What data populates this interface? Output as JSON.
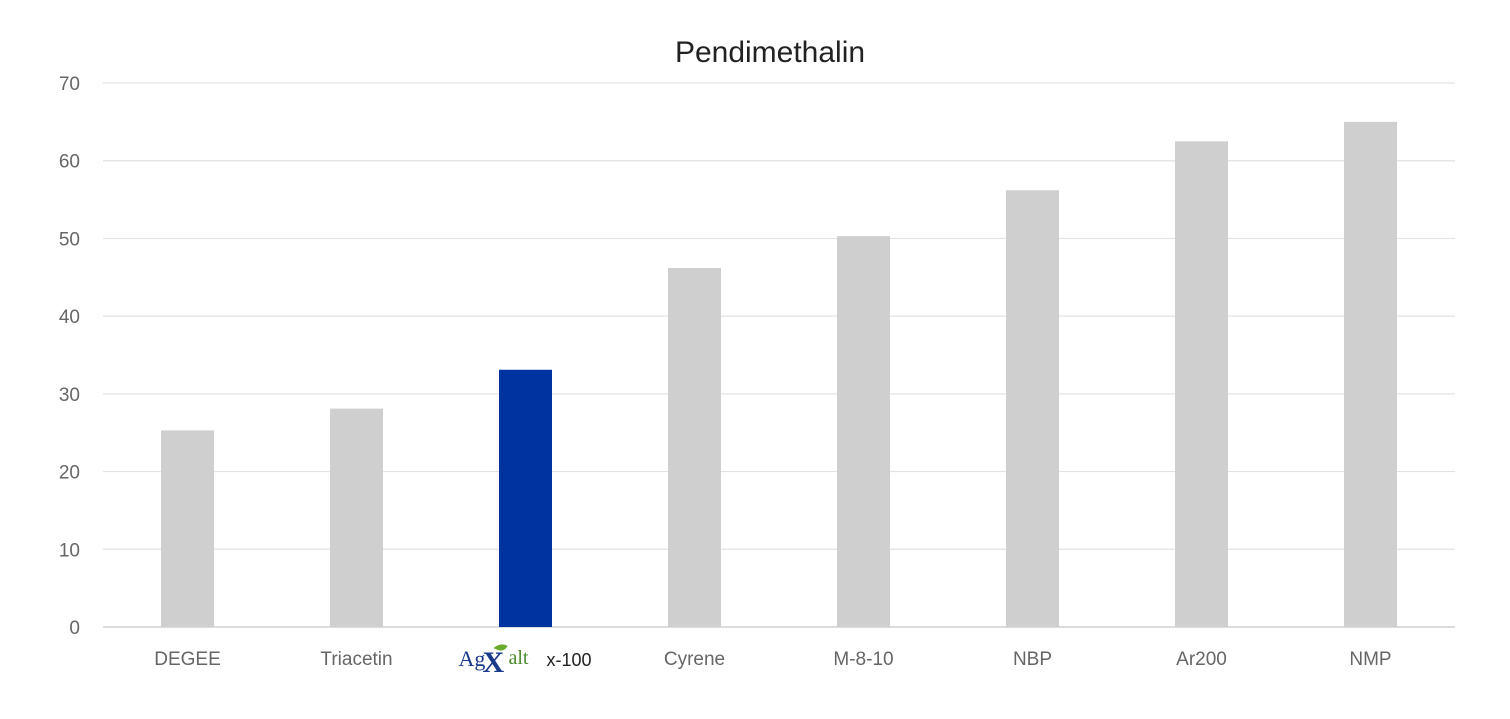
{
  "chart_data": {
    "type": "bar",
    "title": "Pendimethalin",
    "categories": [
      "DEGEE",
      "Triacetin",
      "AgXalt x-100",
      "Cyrene",
      "M-8-10",
      "NBP",
      "Ar200",
      "NMP"
    ],
    "values": [
      25.3,
      28.1,
      33.1,
      46.2,
      50.3,
      56.2,
      62.5,
      65
    ],
    "ylim": [
      0,
      70
    ],
    "yticks": [
      0,
      10,
      20,
      30,
      40,
      50,
      60,
      70
    ],
    "grid": true,
    "highlight_index": 2,
    "colors": {
      "default": "#d0cfcf",
      "highlight": "#0033a0"
    },
    "logo_label": {
      "ag": "Ag",
      "x": "X",
      "alt": "alt",
      "suffix": "x-100"
    }
  }
}
